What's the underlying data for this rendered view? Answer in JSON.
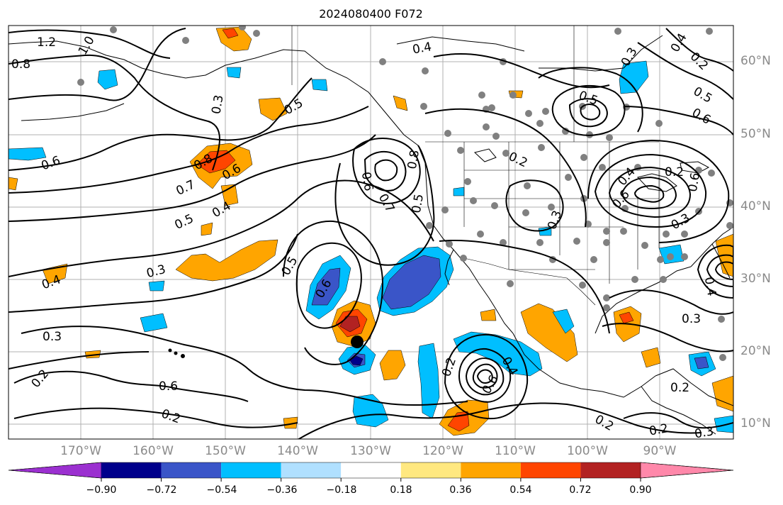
{
  "title": "2024080400 F072",
  "lat_labels": [
    "60°N",
    "50°N",
    "40°N",
    "30°N",
    "20°N",
    "10°N"
  ],
  "lon_labels": [
    "170°W",
    "160°W",
    "150°W",
    "140°W",
    "130°W",
    "120°W",
    "110°W",
    "100°W",
    "90°W"
  ],
  "colorbar": {
    "ticks": [
      "−0.90",
      "−0.72",
      "−0.54",
      "−0.36",
      "−0.18",
      "0.18",
      "0.36",
      "0.54",
      "0.72",
      "0.90"
    ],
    "colors": [
      "#9b30d0",
      "#00008b",
      "#3a55c8",
      "#00bfff",
      "#b0e0ff",
      "#ffffff",
      "#ffe880",
      "#ffa500",
      "#ff4500",
      "#b22222",
      "#ff88aa"
    ]
  },
  "contour_labels": [
    "1.2",
    "1.0",
    "0.8",
    "0.6",
    "0.7",
    "0.5",
    "0.4",
    "0.3",
    "0.2",
    "0.8",
    "0.6",
    "0.4",
    "0.5",
    "0.6",
    "0.7",
    "0.6",
    "0.8",
    "0.5",
    "0.4",
    "0.5",
    "0.3",
    "0.2",
    "0.3",
    "0.6",
    "0.2",
    "0.3",
    "0.2",
    "0.3",
    "0.4",
    "0.5",
    "0.6",
    "0.4",
    "0.2",
    "0.5",
    "0.6",
    "0.4",
    "0.2",
    "0.3",
    "0.3",
    "0.2",
    "0.2",
    "0.2",
    "0.6",
    "0.4",
    "0.3",
    "0.6",
    "0.5",
    "0.2",
    "0.3",
    "0.2",
    "0.6",
    "0.4",
    "0.2",
    "0.3",
    "0.6",
    "0.4",
    "0.2",
    "0.3",
    "0.4",
    "0.4",
    "0.4",
    "0.3",
    "0.2"
  ]
}
